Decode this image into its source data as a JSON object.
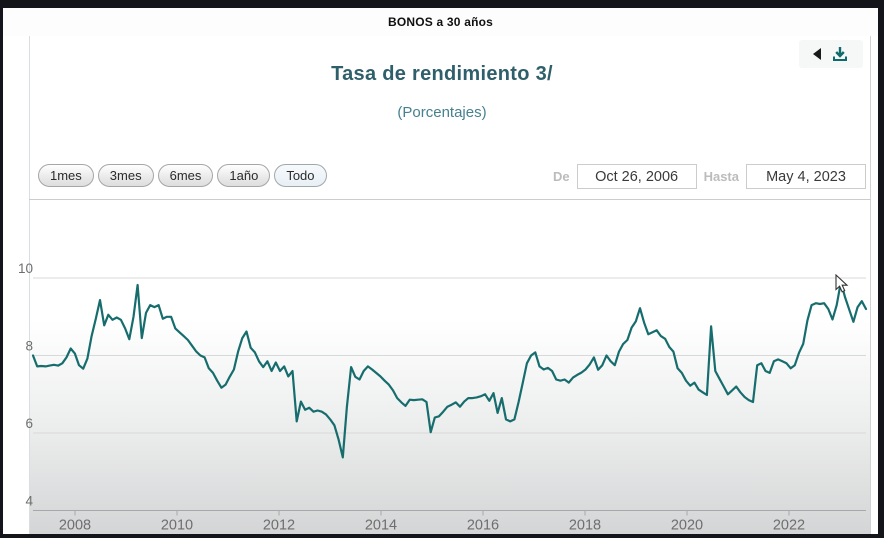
{
  "window": {
    "header": "BONOS a 30 años"
  },
  "header_panel": {
    "title": "Tasa de rendimiento 3/",
    "subtitle": "(Porcentajes)"
  },
  "toolbar": {
    "range_buttons": [
      {
        "label": "1mes",
        "selected": false
      },
      {
        "label": "3mes",
        "selected": false
      },
      {
        "label": "6mes",
        "selected": false
      },
      {
        "label": "1año",
        "selected": false
      },
      {
        "label": "Todo",
        "selected": true
      }
    ],
    "from_label": "De",
    "from_value": "Oct 26, 2006",
    "to_label": "Hasta",
    "to_value": "May 4, 2023"
  },
  "icons": {
    "back_arrow": "back-arrow-icon",
    "download": "download-chart-icon"
  },
  "colors": {
    "line": "#176d6d",
    "title": "#2f5f6b",
    "subtitle": "#46818f",
    "gridline": "#d9d9d9",
    "axis_line": "#a5a9ac",
    "axis_label": "#6e6e6e",
    "download_icon": "#0e6b6b"
  },
  "chart_data": {
    "type": "line",
    "title": "Tasa de rendimiento 3/",
    "subtitle": "(Porcentajes)",
    "series_name": "Tasa de rendimiento BONOS a 30 años",
    "frequency": "monthly",
    "x_start": "2006-10",
    "x_end": "2023-05",
    "ylim": [
      4,
      11
    ],
    "yticks": [
      10,
      8,
      6,
      4
    ],
    "xticklabels": [
      "2008",
      "2010",
      "2012",
      "2014",
      "2016",
      "2018",
      "2020",
      "2022"
    ],
    "grid": true,
    "legend": false,
    "line_color": "#176d6d",
    "values": [
      8.0,
      7.72,
      7.73,
      7.72,
      7.74,
      7.76,
      7.74,
      7.8,
      7.95,
      8.18,
      8.05,
      7.75,
      7.66,
      7.92,
      8.5,
      8.95,
      9.43,
      8.78,
      9.05,
      8.92,
      8.98,
      8.92,
      8.7,
      8.42,
      9.0,
      9.82,
      8.45,
      9.1,
      9.3,
      9.25,
      9.3,
      8.95,
      9.0,
      9.0,
      8.7,
      8.6,
      8.5,
      8.4,
      8.25,
      8.1,
      8.0,
      7.95,
      7.67,
      7.55,
      7.35,
      7.17,
      7.25,
      7.45,
      7.64,
      8.1,
      8.45,
      8.62,
      8.2,
      8.08,
      7.85,
      7.7,
      7.85,
      7.6,
      7.82,
      7.6,
      7.72,
      7.46,
      7.6,
      6.3,
      6.81,
      6.6,
      6.65,
      6.55,
      6.58,
      6.55,
      6.48,
      6.35,
      6.2,
      5.83,
      5.37,
      6.68,
      7.7,
      7.45,
      7.38,
      7.6,
      7.72,
      7.64,
      7.55,
      7.46,
      7.35,
      7.25,
      7.1,
      6.9,
      6.79,
      6.7,
      6.86,
      6.85,
      6.86,
      6.87,
      6.8,
      6.02,
      6.4,
      6.43,
      6.55,
      6.68,
      6.73,
      6.79,
      6.68,
      6.81,
      6.9,
      6.9,
      6.92,
      6.95,
      7.0,
      6.83,
      7.03,
      6.52,
      6.9,
      6.35,
      6.3,
      6.35,
      6.8,
      7.3,
      7.8,
      8.0,
      8.08,
      7.72,
      7.64,
      7.68,
      7.6,
      7.38,
      7.35,
      7.38,
      7.3,
      7.43,
      7.5,
      7.56,
      7.64,
      7.77,
      7.95,
      7.63,
      7.75,
      8.0,
      7.85,
      7.75,
      8.1,
      8.3,
      8.4,
      8.72,
      8.88,
      9.22,
      8.85,
      8.55,
      8.6,
      8.65,
      8.5,
      8.43,
      8.22,
      8.1,
      7.67,
      7.55,
      7.35,
      7.22,
      7.3,
      7.12,
      7.05,
      6.98,
      8.75,
      7.6,
      7.4,
      7.2,
      7.0,
      7.1,
      7.2,
      7.05,
      6.93,
      6.85,
      6.8,
      7.75,
      7.8,
      7.6,
      7.55,
      7.85,
      7.9,
      7.85,
      7.8,
      7.67,
      7.75,
      8.07,
      8.3,
      8.9,
      9.3,
      9.35,
      9.33,
      9.35,
      9.2,
      8.93,
      9.3,
      9.9,
      9.5,
      9.18,
      8.87,
      9.25,
      9.4,
      9.2
    ]
  }
}
